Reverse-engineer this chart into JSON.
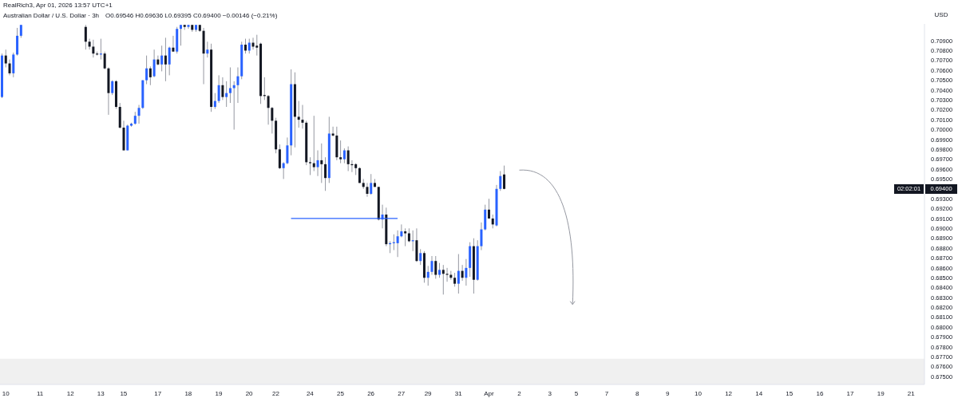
{
  "chart_data": {
    "type": "candlestick",
    "title": "Australian Dollar / U.S. Dollar · 3h",
    "subtitle": "O0.69546 H0.69636 L0.69395 C0.69400 −0.00146 (−0.21%)",
    "ylabel": "USD",
    "annotations": [
      "RealRich3, Apr 01, 2026 13:57 UTC+1",
      {
        "text": "0.69400",
        "y": 0.694
      },
      "02:02:01"
    ],
    "categories": [
      null,
      "10",
      null,
      null,
      null,
      null,
      null,
      null,
      null,
      null,
      "11",
      null,
      null,
      null,
      null,
      null,
      null,
      null,
      "12",
      null,
      null,
      null,
      null,
      null,
      null,
      null,
      "13",
      null,
      null,
      null,
      null,
      null,
      "15",
      null,
      null,
      null,
      null,
      null,
      null,
      null,
      null,
      "17",
      null,
      null,
      null,
      null,
      null,
      null,
      null,
      "18",
      null,
      null,
      null,
      null,
      null,
      null,
      null,
      "19",
      null,
      null,
      null,
      null,
      null,
      null,
      null,
      "20",
      null,
      null,
      null,
      null,
      null,
      null,
      "22",
      null,
      null,
      null,
      null,
      null,
      null,
      null,
      null,
      "24",
      null,
      null,
      null,
      null,
      null,
      null,
      null,
      "25",
      null,
      null,
      null,
      null,
      null,
      null,
      null,
      "26",
      null,
      null,
      null,
      null,
      null,
      null,
      null,
      "27",
      null,
      null,
      null,
      null,
      null,
      null,
      "29",
      null,
      null,
      null,
      null,
      null,
      null,
      null,
      "31",
      null,
      null,
      null,
      null,
      null,
      null,
      null,
      "Apr",
      null,
      null,
      null,
      null,
      null,
      null,
      null,
      "2",
      null,
      null,
      null,
      null,
      null,
      null,
      null,
      "3",
      null,
      null,
      null,
      null,
      null,
      null,
      "5",
      null,
      null,
      null,
      null,
      null,
      null,
      null,
      "7",
      null,
      null,
      null,
      null,
      null,
      null,
      null,
      "8",
      null,
      null,
      null,
      null,
      null,
      null,
      null,
      "9",
      null,
      null,
      null,
      null,
      null,
      null,
      null,
      "10",
      null,
      null,
      null,
      null,
      null,
      null,
      null,
      "12",
      null,
      null,
      null,
      null,
      null,
      null,
      null,
      "14",
      null,
      null,
      null,
      null,
      null,
      null,
      null,
      "15",
      null,
      null,
      null,
      null,
      null,
      null,
      null,
      "16",
      null,
      null,
      null,
      null,
      null,
      null,
      null,
      "17",
      null,
      null,
      null,
      null,
      null,
      null,
      null,
      "19",
      null,
      null,
      null,
      null,
      null,
      null,
      null,
      "21",
      null,
      null,
      null
    ],
    "ohlc": [
      [
        0.7033,
        0.7077,
        0.7032,
        0.7075
      ],
      [
        0.7075,
        0.7081,
        0.7063,
        0.7067
      ],
      [
        0.7067,
        0.7071,
        0.7055,
        0.7057
      ],
      [
        0.7057,
        0.7078,
        0.7053,
        0.7076
      ],
      [
        0.7076,
        0.7103,
        0.7075,
        0.7095
      ],
      [
        0.7095,
        0.7106,
        0.7093,
        0.7106
      ],
      null,
      null,
      null,
      null,
      null,
      null,
      null,
      null,
      null,
      null,
      null,
      null,
      null,
      null,
      null,
      null,
      [
        0.7104,
        0.7106,
        0.7081,
        0.7089
      ],
      [
        0.7089,
        0.7092,
        0.7081,
        0.7084
      ],
      [
        0.7084,
        0.7091,
        0.7073,
        0.7077
      ],
      [
        0.7077,
        0.7079,
        0.7075,
        0.7076
      ],
      [
        0.7076,
        0.7092,
        0.7071,
        0.7077
      ],
      [
        0.7077,
        0.7079,
        0.7061,
        0.7062
      ],
      [
        0.7062,
        0.7063,
        0.7015,
        0.7037
      ],
      [
        0.7037,
        0.705,
        0.7035,
        0.7049
      ],
      [
        0.7049,
        0.705,
        0.7021,
        0.7023
      ],
      [
        0.7023,
        0.7027,
        0.7001,
        0.7002
      ],
      [
        0.7002,
        0.7009,
        0.6979,
        0.6979
      ],
      [
        0.6979,
        0.7005,
        0.6979,
        0.7004
      ],
      [
        0.7004,
        0.7007,
        0.7003,
        0.7006
      ],
      [
        0.7006,
        0.7018,
        0.7005,
        0.7014
      ],
      [
        0.7014,
        0.7025,
        0.7006,
        0.7022
      ],
      [
        0.7022,
        0.705,
        0.7021,
        0.705
      ],
      [
        0.705,
        0.7075,
        0.7046,
        0.7062
      ],
      [
        0.7062,
        0.7064,
        0.7045,
        0.7053
      ],
      [
        0.7054,
        0.7081,
        0.7053,
        0.7071
      ],
      [
        0.7071,
        0.7075,
        0.7065,
        0.7066
      ],
      [
        0.7066,
        0.7085,
        0.7059,
        0.7075
      ],
      [
        0.7075,
        0.7093,
        0.7049,
        0.7066
      ],
      [
        0.7066,
        0.7084,
        0.7055,
        0.7083
      ],
      [
        0.7083,
        0.7095,
        0.7079,
        0.7079
      ],
      [
        0.7079,
        0.7104,
        0.7077,
        0.7102
      ],
      [
        0.7102,
        0.7106,
        0.7085,
        0.7106
      ],
      [
        0.7106,
        0.7106,
        0.7101,
        0.7104
      ],
      [
        0.7104,
        0.7106,
        0.7102,
        0.7106
      ],
      [
        0.7106,
        0.7106,
        0.7099,
        0.7101
      ],
      [
        0.7101,
        0.7106,
        0.7099,
        0.7106
      ],
      [
        0.7106,
        0.7106,
        0.7099,
        0.71
      ],
      [
        0.71,
        0.7103,
        0.7046,
        0.7077
      ],
      [
        0.7077,
        0.7089,
        0.7073,
        0.7081
      ],
      [
        0.7081,
        0.7087,
        0.7018,
        0.7023
      ],
      [
        0.7023,
        0.7037,
        0.7021,
        0.7029
      ],
      [
        0.7029,
        0.7055,
        0.7027,
        0.7045
      ],
      [
        0.7045,
        0.7053,
        0.703,
        0.7033
      ],
      [
        0.7033,
        0.7049,
        0.7023,
        0.7037
      ],
      [
        0.7037,
        0.7063,
        0.7027,
        0.7042
      ],
      [
        0.7042,
        0.7049,
        0.7,
        0.7045
      ],
      [
        0.7045,
        0.7063,
        0.7027,
        0.7054
      ],
      [
        0.7054,
        0.7089,
        0.7051,
        0.7086
      ],
      [
        0.7086,
        0.7092,
        0.7077,
        0.708
      ],
      [
        0.708,
        0.7092,
        0.7077,
        0.7088
      ],
      [
        0.7088,
        0.7093,
        0.7081,
        0.7084
      ],
      [
        0.7085,
        0.7096,
        0.7075,
        0.7083
      ],
      [
        0.7087,
        0.7088,
        0.7026,
        0.7034
      ],
      [
        0.7035,
        0.7053,
        0.703,
        0.7034
      ],
      [
        0.7034,
        0.7035,
        0.7005,
        0.7022
      ],
      [
        0.7022,
        0.7023,
        0.6996,
        0.7009
      ],
      [
        0.7009,
        0.7012,
        0.6976,
        0.698
      ],
      [
        0.698,
        0.6985,
        0.696,
        0.6961
      ],
      [
        0.6961,
        0.6967,
        0.695,
        0.6966
      ],
      [
        0.6966,
        0.6992,
        0.6965,
        0.6984
      ],
      [
        0.6984,
        0.7061,
        0.6974,
        0.7046
      ],
      [
        0.7046,
        0.7058,
        0.6982,
        0.7013
      ],
      [
        0.7013,
        0.7029,
        0.7002,
        0.701
      ],
      [
        0.701,
        0.7025,
        0.7001,
        0.7007
      ],
      [
        0.7007,
        0.7009,
        0.6964,
        0.6967
      ],
      [
        0.6967,
        0.6972,
        0.6954,
        0.6966
      ],
      [
        0.6966,
        0.7014,
        0.6958,
        0.6962
      ],
      [
        0.6962,
        0.6979,
        0.6953,
        0.6969
      ],
      [
        0.6969,
        0.6986,
        0.6946,
        0.6965
      ],
      [
        0.6965,
        0.6972,
        0.6938,
        0.6951
      ],
      [
        0.6951,
        0.7013,
        0.6946,
        0.6996
      ],
      [
        0.6996,
        0.7003,
        0.6993,
        0.6994
      ],
      [
        0.6994,
        0.7003,
        0.6969,
        0.6972
      ],
      [
        0.6972,
        0.6989,
        0.6966,
        0.697
      ],
      [
        0.697,
        0.6981,
        0.6966,
        0.6979
      ],
      [
        0.6979,
        0.6983,
        0.6958,
        0.6965
      ],
      [
        0.6965,
        0.6969,
        0.6957,
        0.6964
      ],
      [
        0.6965,
        0.6966,
        0.6954,
        0.6961
      ],
      [
        0.6961,
        0.6962,
        0.6946,
        0.6946
      ],
      [
        0.6946,
        0.695,
        0.694,
        0.6942
      ],
      [
        0.6942,
        0.6946,
        0.6932,
        0.6935
      ],
      [
        0.6935,
        0.6955,
        0.6934,
        0.6946
      ],
      [
        0.6946,
        0.695,
        0.6942,
        0.6942
      ],
      [
        0.6942,
        0.6942,
        0.6908,
        0.6909
      ],
      [
        0.6909,
        0.6924,
        0.69,
        0.6914
      ],
      [
        0.6914,
        0.6921,
        0.6882,
        0.6884
      ],
      [
        0.6884,
        0.6887,
        0.6875,
        0.6885
      ],
      [
        0.6885,
        0.6894,
        0.6878,
        0.6886
      ],
      [
        0.6885,
        0.6898,
        0.6871,
        0.6892
      ],
      [
        0.6892,
        0.6904,
        0.6891,
        0.6897
      ],
      [
        0.6897,
        0.69,
        0.6882,
        0.6895
      ],
      [
        0.6895,
        0.69,
        0.6886,
        0.6887
      ],
      [
        0.6887,
        0.6898,
        0.6877,
        0.6888
      ],
      [
        0.6888,
        0.69,
        0.6866,
        0.6867
      ],
      [
        0.6867,
        0.6879,
        0.6863,
        0.6875
      ],
      [
        0.6875,
        0.6877,
        0.6845,
        0.685
      ],
      [
        0.685,
        0.6862,
        0.6842,
        0.6856
      ],
      [
        0.6856,
        0.6872,
        0.6853,
        0.6867
      ],
      [
        0.6867,
        0.6872,
        0.6849,
        0.6853
      ],
      [
        0.6853,
        0.6865,
        0.685,
        0.6858
      ],
      [
        0.6858,
        0.6863,
        0.6833,
        0.6854
      ],
      [
        0.6854,
        0.686,
        0.6846,
        0.6853
      ],
      [
        0.6853,
        0.6857,
        0.6848,
        0.685
      ],
      [
        0.685,
        0.6855,
        0.6841,
        0.6844
      ],
      [
        0.6844,
        0.6874,
        0.6834,
        0.6857
      ],
      [
        0.6857,
        0.6863,
        0.6847,
        0.685
      ],
      [
        0.685,
        0.6869,
        0.6842,
        0.686
      ],
      [
        0.686,
        0.6886,
        0.6851,
        0.6882
      ],
      [
        0.6882,
        0.689,
        0.6834,
        0.6848
      ],
      [
        0.6848,
        0.6888,
        0.6847,
        0.6882
      ],
      [
        0.6882,
        0.6906,
        0.6878,
        0.6899
      ],
      [
        0.6899,
        0.6924,
        0.6898,
        0.6919
      ],
      [
        0.6919,
        0.693,
        0.691,
        0.691
      ],
      [
        0.691,
        0.6914,
        0.69,
        0.6904
      ],
      [
        0.6903,
        0.6944,
        0.6902,
        0.694
      ],
      [
        0.694,
        0.6958,
        0.6938,
        0.6953
      ],
      [
        0.69546,
        0.69636,
        0.69395,
        0.694
      ],
      null,
      null,
      null,
      null,
      null,
      null,
      null,
      null,
      null,
      null,
      null,
      null,
      null,
      null,
      null,
      null,
      null,
      null,
      null,
      null,
      null,
      null,
      null,
      null,
      null,
      null,
      null,
      null,
      null,
      null,
      null,
      null,
      null,
      null,
      null,
      null,
      null,
      null,
      null,
      null,
      null,
      null,
      null,
      null,
      null,
      null,
      null,
      null,
      null,
      null,
      null,
      null,
      null,
      null,
      null,
      null,
      null,
      null,
      null,
      null,
      null,
      null,
      null,
      null,
      null,
      null,
      null,
      null,
      null,
      null,
      null,
      null,
      null,
      null,
      null,
      null,
      null,
      null,
      null,
      null,
      null,
      null,
      null,
      null,
      null,
      null,
      null,
      null,
      null,
      null,
      null,
      null,
      null,
      null,
      null,
      null,
      null,
      null,
      null,
      null,
      null,
      null,
      null,
      null,
      null,
      null,
      null,
      null,
      null,
      null
    ],
    "colors": [
      "#2962ff",
      "#131722",
      "#131722",
      "#2962ff",
      "#2962ff",
      "#2962ff",
      null,
      null,
      null,
      null,
      null,
      null,
      null,
      null,
      null,
      null,
      null,
      null,
      null,
      null,
      null,
      null,
      "#131722",
      "#131722",
      "#131722",
      "#131722",
      "#2962ff",
      "#131722",
      "#131722",
      "#2962ff",
      "#131722",
      "#131722",
      "#131722",
      "#2962ff",
      "#2962ff",
      "#2962ff",
      "#2962ff",
      "#2962ff",
      "#2962ff",
      "#131722",
      "#2962ff",
      "#131722",
      "#2962ff",
      "#131722",
      "#2962ff",
      "#131722",
      "#2962ff",
      "#2962ff",
      "#131722",
      "#2962ff",
      "#131722",
      "#2962ff",
      "#131722",
      "#131722",
      "#2962ff",
      "#131722",
      "#2962ff",
      "#2962ff",
      "#131722",
      "#2962ff",
      "#2962ff",
      "#2962ff",
      "#2962ff",
      "#2962ff",
      "#131722",
      "#2962ff",
      "#131722",
      "#131722",
      "#131722",
      "#131722",
      "#131722",
      "#131722",
      "#131722",
      "#131722",
      "#2962ff",
      "#2962ff",
      "#2962ff",
      "#131722",
      "#131722",
      "#131722",
      "#131722",
      "#131722",
      "#131722",
      "#2962ff",
      "#131722",
      "#131722",
      "#2962ff",
      "#131722",
      "#131722",
      "#131722",
      "#2962ff",
      "#131722",
      "#131722",
      "#131722",
      "#131722",
      "#131722",
      "#131722",
      "#2962ff",
      "#131722",
      "#131722",
      "#2962ff",
      "#131722",
      "#2962ff",
      "#2962ff",
      "#2962ff",
      "#2962ff",
      "#131722",
      "#131722",
      "#2962ff",
      "#131722",
      "#2962ff",
      "#131722",
      "#2962ff",
      "#2962ff",
      "#131722",
      "#2962ff",
      "#131722",
      "#131722",
      "#131722",
      "#131722",
      "#2962ff",
      "#131722",
      "#2962ff",
      "#2962ff",
      "#131722",
      "#2962ff",
      "#2962ff",
      "#2962ff",
      "#131722",
      "#131722",
      "#2962ff",
      "#2962ff",
      "#131722",
      null,
      null,
      null,
      null,
      null,
      null,
      null,
      null,
      null,
      null,
      null,
      null,
      null,
      null,
      null,
      null,
      null,
      null,
      null,
      null,
      null,
      null,
      null,
      null,
      null,
      null,
      null,
      null,
      null,
      null,
      null,
      null,
      null,
      null,
      null,
      null,
      null,
      null,
      null,
      null,
      null,
      null,
      null,
      null,
      null,
      null,
      null,
      null,
      null,
      null,
      null,
      null,
      null,
      null,
      null,
      null,
      null,
      null,
      null,
      null,
      null,
      null,
      null,
      null,
      null,
      null,
      null,
      null,
      null,
      null,
      null,
      null,
      null,
      null,
      null,
      null,
      null,
      null,
      null,
      null,
      null,
      null,
      null,
      null,
      null,
      null,
      null,
      null,
      null,
      null,
      null,
      null,
      null,
      null,
      null,
      null,
      null,
      null,
      null,
      null,
      null,
      null,
      null,
      null,
      null,
      null,
      null,
      null,
      null,
      null
    ],
    "series": [
      {
        "type": "line",
        "color": "#2962ff",
        "values": [
          null,
          null,
          null,
          null,
          null,
          null,
          null,
          null,
          null,
          null,
          null,
          null,
          null,
          null,
          null,
          null,
          null,
          null,
          null,
          null,
          null,
          null,
          null,
          null,
          null,
          null,
          null,
          null,
          null,
          null,
          null,
          null,
          null,
          null,
          null,
          null,
          null,
          null,
          null,
          null,
          null,
          null,
          null,
          null,
          null,
          null,
          null,
          null,
          null,
          null,
          null,
          null,
          null,
          null,
          null,
          null,
          null,
          null,
          null,
          null,
          null,
          null,
          null,
          null,
          null,
          null,
          null,
          null,
          null,
          null,
          null,
          null,
          null,
          null,
          null,
          null,
          0.691,
          0.691,
          0.691,
          0.691,
          0.691,
          0.691,
          0.691,
          0.691,
          0.691,
          0.691,
          0.691,
          0.691,
          0.691,
          0.691,
          0.691,
          0.691,
          0.691,
          0.691,
          0.691,
          0.691,
          0.691,
          0.691,
          0.691,
          0.691,
          0.691,
          0.691,
          0.691,
          0.691,
          0.691,
          null,
          null,
          null,
          null,
          null,
          null,
          null,
          null,
          null,
          null,
          null,
          null,
          null,
          null,
          null,
          null,
          null,
          null,
          null,
          null,
          null,
          null,
          null,
          null,
          null,
          null,
          null,
          null,
          null,
          null,
          null,
          null,
          null,
          null,
          null,
          null,
          null,
          null,
          null,
          null,
          null,
          null,
          null,
          null,
          null,
          null,
          null,
          null,
          null,
          null,
          null,
          null,
          null,
          null,
          null,
          null,
          null,
          null,
          null,
          null,
          null,
          null,
          null,
          null,
          null,
          null,
          null,
          null,
          null,
          null,
          null,
          null,
          null,
          null,
          null,
          null,
          null,
          null,
          null,
          null,
          null,
          null,
          null,
          null,
          null,
          null,
          null,
          null,
          null,
          null,
          null,
          null,
          null,
          null,
          null,
          null,
          null,
          null,
          null,
          null,
          null,
          null,
          null,
          null,
          null,
          null,
          null,
          null,
          null,
          null,
          null,
          null,
          null,
          null,
          null,
          null,
          null,
          null,
          null,
          null,
          null,
          null,
          null,
          null,
          null,
          null,
          null,
          null,
          null,
          null,
          null,
          null,
          null,
          null,
          null,
          null,
          null,
          null
        ]
      }
    ],
    "bands": [
      {
        "axis": "y",
        "from": 0.6742,
        "to": 0.6768,
        "color": "#f0f0f0"
      }
    ],
    "ylim": [
      0.6742,
      0.7107
    ],
    "yticks": [
      {
        "value": 0.675,
        "label": "0.67500"
      },
      {
        "value": 0.676,
        "label": "0.67600"
      },
      {
        "value": 0.677,
        "label": "0.67700"
      },
      {
        "value": 0.678,
        "label": "0.67800"
      },
      {
        "value": 0.679,
        "label": "0.67900"
      },
      {
        "value": 0.68,
        "label": "0.68000"
      },
      {
        "value": 0.681,
        "label": "0.68100"
      },
      {
        "value": 0.682,
        "label": "0.68200"
      },
      {
        "value": 0.683,
        "label": "0.68300"
      },
      {
        "value": 0.684,
        "label": "0.68400"
      },
      {
        "value": 0.685,
        "label": "0.68500"
      },
      {
        "value": 0.686,
        "label": "0.68600"
      },
      {
        "value": 0.687,
        "label": "0.68700"
      },
      {
        "value": 0.688,
        "label": "0.68800"
      },
      {
        "value": 0.689,
        "label": "0.68900"
      },
      {
        "value": 0.69,
        "label": "0.69000"
      },
      {
        "value": 0.691,
        "label": "0.69100"
      },
      {
        "value": 0.692,
        "label": "0.69200"
      },
      {
        "value": 0.693,
        "label": "0.69300"
      },
      {
        "value": 0.695,
        "label": "0.69500"
      },
      {
        "value": 0.696,
        "label": "0.69600"
      },
      {
        "value": 0.697,
        "label": "0.69700"
      },
      {
        "value": 0.698,
        "label": "0.69800"
      },
      {
        "value": 0.699,
        "label": "0.69900"
      },
      {
        "value": 0.7,
        "label": "0.70000"
      },
      {
        "value": 0.701,
        "label": "0.70100"
      },
      {
        "value": 0.702,
        "label": "0.70200"
      },
      {
        "value": 0.703,
        "label": "0.70300"
      },
      {
        "value": 0.704,
        "label": "0.70400"
      },
      {
        "value": 0.705,
        "label": "0.70500"
      },
      {
        "value": 0.706,
        "label": "0.70600"
      },
      {
        "value": 0.707,
        "label": "0.70700"
      },
      {
        "value": 0.708,
        "label": "0.70800"
      },
      {
        "value": 0.709,
        "label": "0.70900"
      }
    ]
  }
}
